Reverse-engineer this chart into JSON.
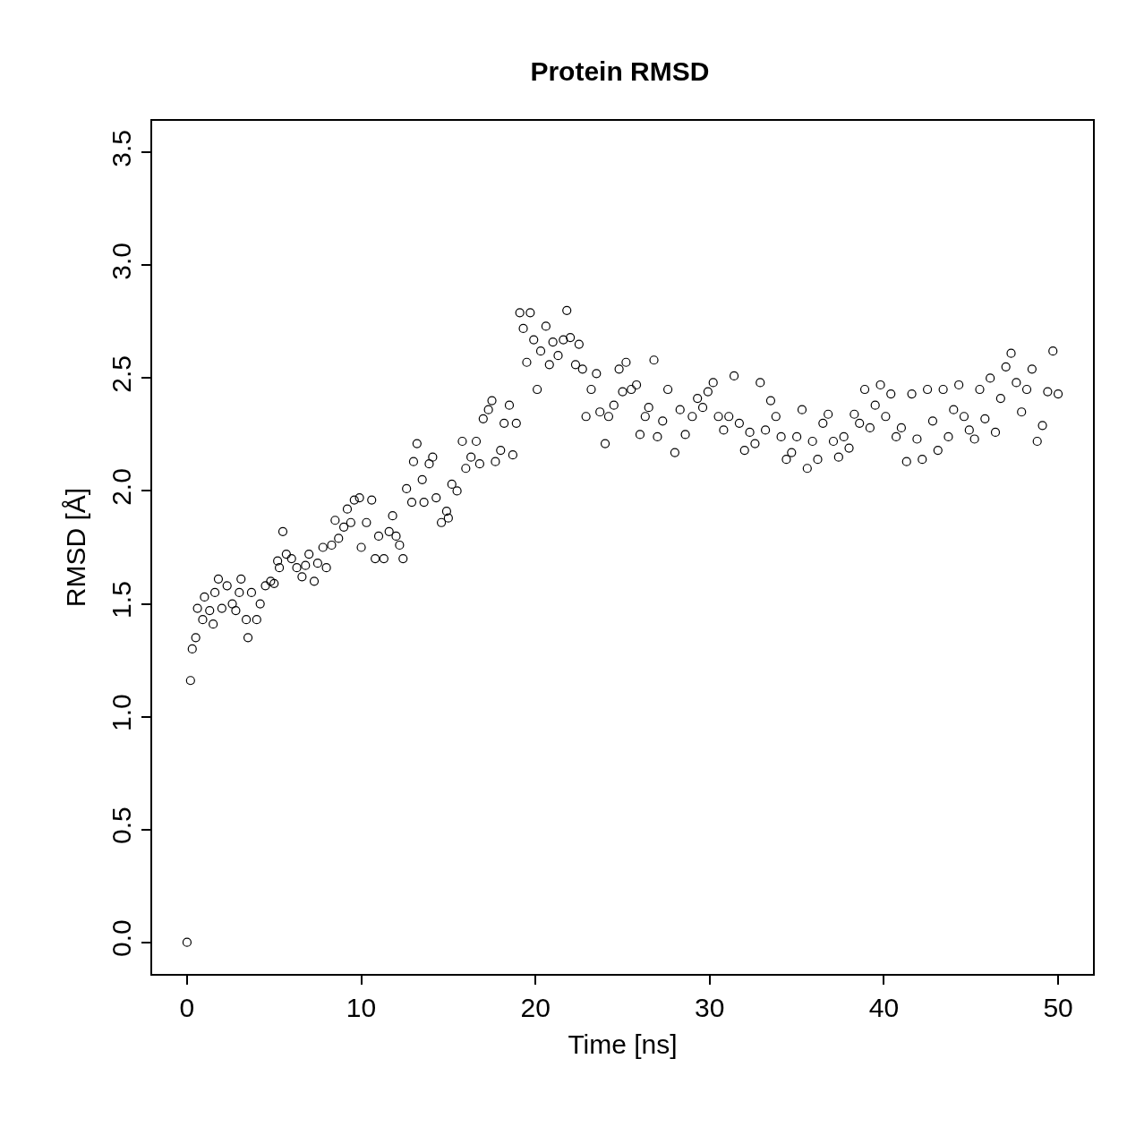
{
  "chart_data": {
    "type": "scatter",
    "title": "Protein RMSD",
    "xlabel": "Time [ns]",
    "ylabel": "RMSD [Å]",
    "x": [
      0,
      0.2,
      0.3,
      0.5,
      0.6,
      0.9,
      1.0,
      1.3,
      1.5,
      1.6,
      1.8,
      2.0,
      2.3,
      2.6,
      2.8,
      3.0,
      3.1,
      3.4,
      3.5,
      3.7,
      4.0,
      4.2,
      4.5,
      4.8,
      5.0,
      5.2,
      5.3,
      5.5,
      5.7,
      6.0,
      6.3,
      6.6,
      6.8,
      7.0,
      7.3,
      7.5,
      7.8,
      8.0,
      8.3,
      8.5,
      8.7,
      9.0,
      9.2,
      9.4,
      9.6,
      9.9,
      10.0,
      10.3,
      10.6,
      10.8,
      11.0,
      11.3,
      11.6,
      11.8,
      12.0,
      12.2,
      12.4,
      12.6,
      12.9,
      13.0,
      13.2,
      13.5,
      13.6,
      13.9,
      14.1,
      14.3,
      14.6,
      14.9,
      15.0,
      15.2,
      15.5,
      15.8,
      16.0,
      16.3,
      16.6,
      16.8,
      17.0,
      17.3,
      17.5,
      17.7,
      18.0,
      18.2,
      18.5,
      18.7,
      18.9,
      19.1,
      19.3,
      19.5,
      19.7,
      19.9,
      20.1,
      20.3,
      20.6,
      20.8,
      21.0,
      21.3,
      21.6,
      21.8,
      22.0,
      22.3,
      22.5,
      22.7,
      22.9,
      23.2,
      23.5,
      23.7,
      24.0,
      24.2,
      24.5,
      24.8,
      25.0,
      25.2,
      25.5,
      25.8,
      26.0,
      26.3,
      26.5,
      26.8,
      27.0,
      27.3,
      27.6,
      28.0,
      28.3,
      28.6,
      29.0,
      29.3,
      29.6,
      29.9,
      30.2,
      30.5,
      30.8,
      31.1,
      31.4,
      31.7,
      32.0,
      32.3,
      32.6,
      32.9,
      33.2,
      33.5,
      33.8,
      34.1,
      34.4,
      34.7,
      35.0,
      35.3,
      35.6,
      35.9,
      36.2,
      36.5,
      36.8,
      37.1,
      37.4,
      37.7,
      38.0,
      38.3,
      38.6,
      38.9,
      39.2,
      39.5,
      39.8,
      40.1,
      40.4,
      40.7,
      41.0,
      41.3,
      41.6,
      41.9,
      42.2,
      42.5,
      42.8,
      43.1,
      43.4,
      43.7,
      44.0,
      44.3,
      44.6,
      44.9,
      45.2,
      45.5,
      45.8,
      46.1,
      46.4,
      46.7,
      47.0,
      47.3,
      47.6,
      47.9,
      48.2,
      48.5,
      48.8,
      49.1,
      49.4,
      49.7,
      50.0
    ],
    "values": [
      0.0,
      1.16,
      1.3,
      1.35,
      1.48,
      1.43,
      1.53,
      1.47,
      1.41,
      1.55,
      1.61,
      1.48,
      1.58,
      1.5,
      1.47,
      1.55,
      1.61,
      1.43,
      1.35,
      1.55,
      1.43,
      1.5,
      1.58,
      1.6,
      1.59,
      1.69,
      1.66,
      1.82,
      1.72,
      1.7,
      1.66,
      1.62,
      1.67,
      1.72,
      1.6,
      1.68,
      1.75,
      1.66,
      1.76,
      1.87,
      1.79,
      1.84,
      1.92,
      1.86,
      1.96,
      1.97,
      1.75,
      1.86,
      1.96,
      1.7,
      1.8,
      1.7,
      1.82,
      1.89,
      1.8,
      1.76,
      1.7,
      2.01,
      1.95,
      2.13,
      2.21,
      2.05,
      1.95,
      2.12,
      2.15,
      1.97,
      1.86,
      1.91,
      1.88,
      2.03,
      2.0,
      2.22,
      2.1,
      2.15,
      2.22,
      2.12,
      2.32,
      2.36,
      2.4,
      2.13,
      2.18,
      2.3,
      2.38,
      2.16,
      2.3,
      2.79,
      2.72,
      2.57,
      2.79,
      2.67,
      2.45,
      2.62,
      2.73,
      2.56,
      2.66,
      2.6,
      2.67,
      2.8,
      2.68,
      2.56,
      2.65,
      2.54,
      2.33,
      2.45,
      2.52,
      2.35,
      2.21,
      2.33,
      2.38,
      2.54,
      2.44,
      2.57,
      2.45,
      2.47,
      2.25,
      2.33,
      2.37,
      2.58,
      2.24,
      2.31,
      2.45,
      2.17,
      2.36,
      2.25,
      2.33,
      2.41,
      2.37,
      2.44,
      2.48,
      2.33,
      2.27,
      2.33,
      2.51,
      2.3,
      2.18,
      2.26,
      2.21,
      2.48,
      2.27,
      2.4,
      2.33,
      2.24,
      2.14,
      2.17,
      2.24,
      2.36,
      2.1,
      2.22,
      2.14,
      2.3,
      2.34,
      2.22,
      2.15,
      2.24,
      2.19,
      2.34,
      2.3,
      2.45,
      2.28,
      2.38,
      2.47,
      2.33,
      2.43,
      2.24,
      2.28,
      2.13,
      2.43,
      2.23,
      2.14,
      2.45,
      2.31,
      2.18,
      2.45,
      2.24,
      2.36,
      2.47,
      2.33,
      2.27,
      2.23,
      2.45,
      2.32,
      2.5,
      2.26,
      2.41,
      2.55,
      2.61,
      2.48,
      2.35,
      2.45,
      2.54,
      2.22,
      2.29,
      2.44,
      2.62,
      2.43
    ],
    "color": "#000000",
    "marker": "circle",
    "xlim": [
      -2,
      52
    ],
    "xticks": [
      0,
      10,
      20,
      30,
      40,
      50
    ],
    "ylim": [
      -0.14,
      3.64
    ],
    "yticks": [
      {
        "value": 0,
        "label": "0.0"
      },
      0.5,
      {
        "value": 1,
        "label": "1.0"
      },
      1.5,
      {
        "value": 2,
        "label": "2.0"
      },
      2.5,
      {
        "value": 3,
        "label": "3.0"
      },
      3.5
    ]
  }
}
